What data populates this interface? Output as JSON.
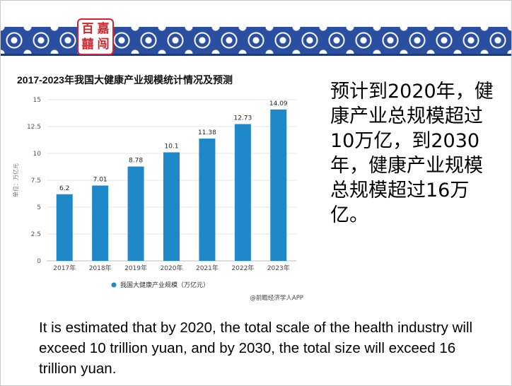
{
  "logo": {
    "chars": [
      "百",
      "嘉",
      "囍",
      "闯"
    ]
  },
  "chart_title": "2017-2023年我国大健康产业规模统计情况及预测",
  "chart_data": {
    "type": "bar",
    "categories": [
      "2017年",
      "2018年",
      "2019年",
      "2020年",
      "2021年",
      "2022年",
      "2023年"
    ],
    "series": [
      {
        "name": "我国大健康产业规模（万亿元）",
        "values": [
          6.2,
          7.01,
          8.78,
          10.1,
          11.38,
          12.73,
          14.09
        ]
      }
    ],
    "value_labels": [
      "6.2",
      "7.01",
      "8.78",
      "10.1",
      "11.38",
      "12.73",
      "14.09"
    ],
    "ylabel": "单位：万亿元",
    "ylim": [
      0,
      15
    ],
    "yticks": [
      "0",
      "2.5",
      "5",
      "7.5",
      "10",
      "12.5",
      "15"
    ],
    "ytick_values": [
      0,
      2.5,
      5,
      7.5,
      10,
      12.5,
      15
    ],
    "grid": true,
    "legend": "bottom",
    "source": "@前瞻经济学人APP",
    "bar_color": "#1e88c8"
  },
  "cn_text": "预计到2020年，健康产业总规模超过10万亿，到2030年，健康产业规模总规模超过16万亿。",
  "en_text": "It is estimated that by 2020, the total scale of the health industry will exceed 10 trillion yuan, and by 2030, the total size will exceed 16 trillion yuan."
}
